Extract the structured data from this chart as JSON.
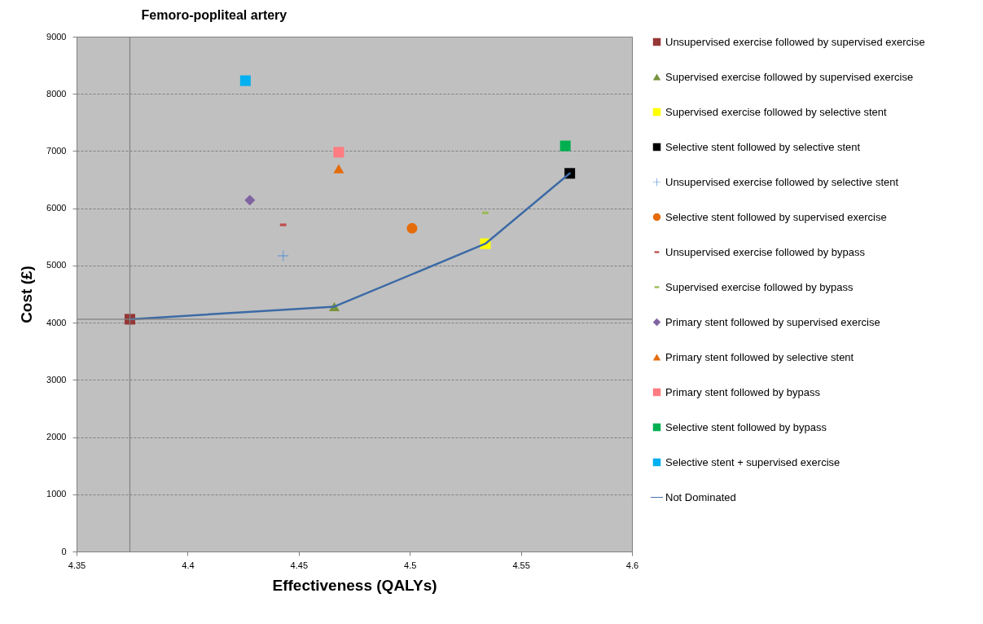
{
  "chart_data": {
    "type": "scatter",
    "title": "Femoro-popliteal artery",
    "xlabel": "Effectiveness (QALYs)",
    "ylabel": "Cost (£)",
    "xlim": [
      4.35,
      4.6
    ],
    "xticks": [
      4.35,
      4.4,
      4.45,
      4.5,
      4.55,
      4.6
    ],
    "ylim": [
      0,
      9000
    ],
    "yticks": [
      0,
      1000,
      2000,
      3000,
      4000,
      5000,
      6000,
      7000,
      8000,
      9000
    ],
    "grid": "y",
    "legend": "right",
    "ref_lines": [
      {
        "axis": "x",
        "value": 4.374,
        "color": "#808080"
      },
      {
        "axis": "y",
        "value": 4060,
        "color": "#808080"
      }
    ],
    "series": [
      {
        "name": "Unsupervised exercise followed by supervised exercise",
        "color": "#953735",
        "marker": "square",
        "x": [
          4.374
        ],
        "values": [
          4060
        ]
      },
      {
        "name": "Supervised exercise followed by supervised exercise",
        "color": "#77933c",
        "marker": "triangle",
        "x": [
          4.466
        ],
        "values": [
          4280
        ]
      },
      {
        "name": "Supervised exercise followed by selective stent",
        "color": "#ffff00",
        "marker": "square",
        "x": [
          4.534
        ],
        "values": [
          5380
        ]
      },
      {
        "name": "Selective stent followed by selective stent",
        "color": "#000000",
        "marker": "square",
        "x": [
          4.572
        ],
        "values": [
          6610
        ]
      },
      {
        "name": "Unsupervised exercise followed by selective stent",
        "color": "#558ed5",
        "marker": "cross",
        "x": [
          4.443
        ],
        "values": [
          5170
        ]
      },
      {
        "name": "Selective stent followed by supervised exercise",
        "color": "#e46c0a",
        "marker": "circle",
        "x": [
          4.501
        ],
        "values": [
          5650
        ]
      },
      {
        "name": "Unsupervised exercise followed by bypass",
        "color": "#c0504d",
        "x": [
          4.443
        ],
        "values": [
          5710
        ]
      },
      {
        "name": "Supervised exercise followed by bypass",
        "color": "#9bbb59",
        "x": [
          4.534
        ],
        "values": [
          5920
        ]
      },
      {
        "name": "Primary stent followed by supervised exercise",
        "color": "#8064a2",
        "marker": "diamond",
        "x": [
          4.428
        ],
        "values": [
          6140
        ]
      },
      {
        "name": "Primary stent followed by selective stent",
        "color": "#e46c0a",
        "marker": "triangle",
        "x": [
          4.468
        ],
        "values": [
          6690
        ]
      },
      {
        "name": "Primary stent followed by bypass",
        "color": "#ff7c80",
        "marker": "square",
        "x": [
          4.468
        ],
        "values": [
          6980
        ]
      },
      {
        "name": "Selective stent followed by bypass",
        "color": "#00b050",
        "marker": "square",
        "x": [
          4.57
        ],
        "values": [
          7090
        ]
      },
      {
        "name": "Selective stent + supervised exercise",
        "color": "#00b0f0",
        "marker": "square",
        "x": [
          4.426
        ],
        "values": [
          8230
        ]
      },
      {
        "name": "Not Dominated",
        "color": "#3c6aa5",
        "type": "line",
        "marker": "none",
        "x": [
          4.374,
          4.466,
          4.534,
          4.572
        ],
        "values": [
          4060,
          4280,
          5380,
          6610
        ]
      }
    ]
  }
}
